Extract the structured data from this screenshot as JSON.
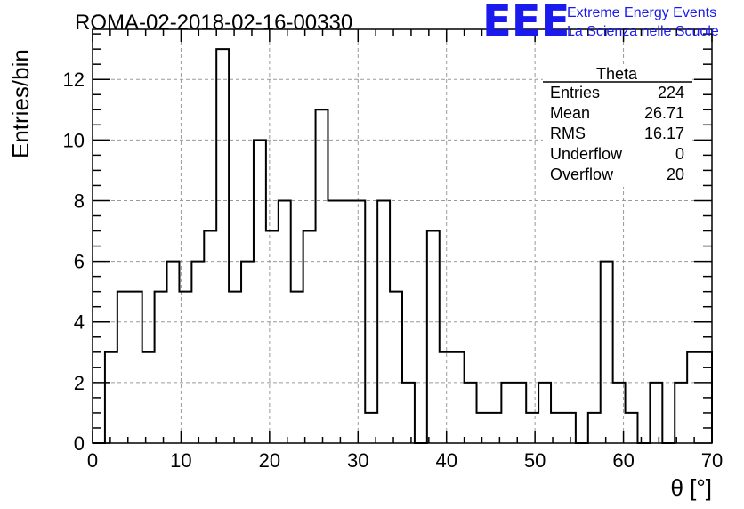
{
  "chart_data": {
    "type": "histogram",
    "title": "ROMA-02-2018-02-16-00330",
    "xlabel": "θ [°]",
    "ylabel": "Entries/bin",
    "xlim": [
      0,
      70
    ],
    "ylim": [
      0,
      13.65
    ],
    "bin_width": 1.4,
    "grid": true,
    "x_ticks": [
      "0",
      "10",
      "20",
      "30",
      "40",
      "50",
      "60",
      "70"
    ],
    "y_ticks": [
      "0",
      "2",
      "4",
      "6",
      "8",
      "10",
      "12"
    ],
    "values": [
      0,
      3,
      5,
      5,
      3,
      5,
      6,
      5,
      6,
      7,
      13,
      5,
      6,
      10,
      7,
      8,
      5,
      7,
      11,
      8,
      8,
      8,
      1,
      8,
      5,
      2,
      0,
      7,
      3,
      3,
      2,
      1,
      1,
      2,
      2,
      1,
      2,
      1,
      1,
      0,
      1,
      6,
      2,
      1,
      0,
      2,
      0,
      2,
      3,
      3
    ],
    "stats_box": {
      "title": "Theta",
      "rows": [
        {
          "label": "Entries",
          "value": "224"
        },
        {
          "label": "Mean",
          "value": "26.71"
        },
        {
          "label": "RMS",
          "value": "16.17"
        },
        {
          "label": "Underflow",
          "value": "0"
        },
        {
          "label": "Overflow",
          "value": "20"
        }
      ]
    }
  },
  "logo": {
    "text": "EEE",
    "line1": "Extreme Energy Events",
    "line2": "La Scienza nelle Scuole",
    "color": "#1a1aee"
  },
  "colors": {
    "line": "#000000",
    "grid": "#9a9a9a"
  }
}
